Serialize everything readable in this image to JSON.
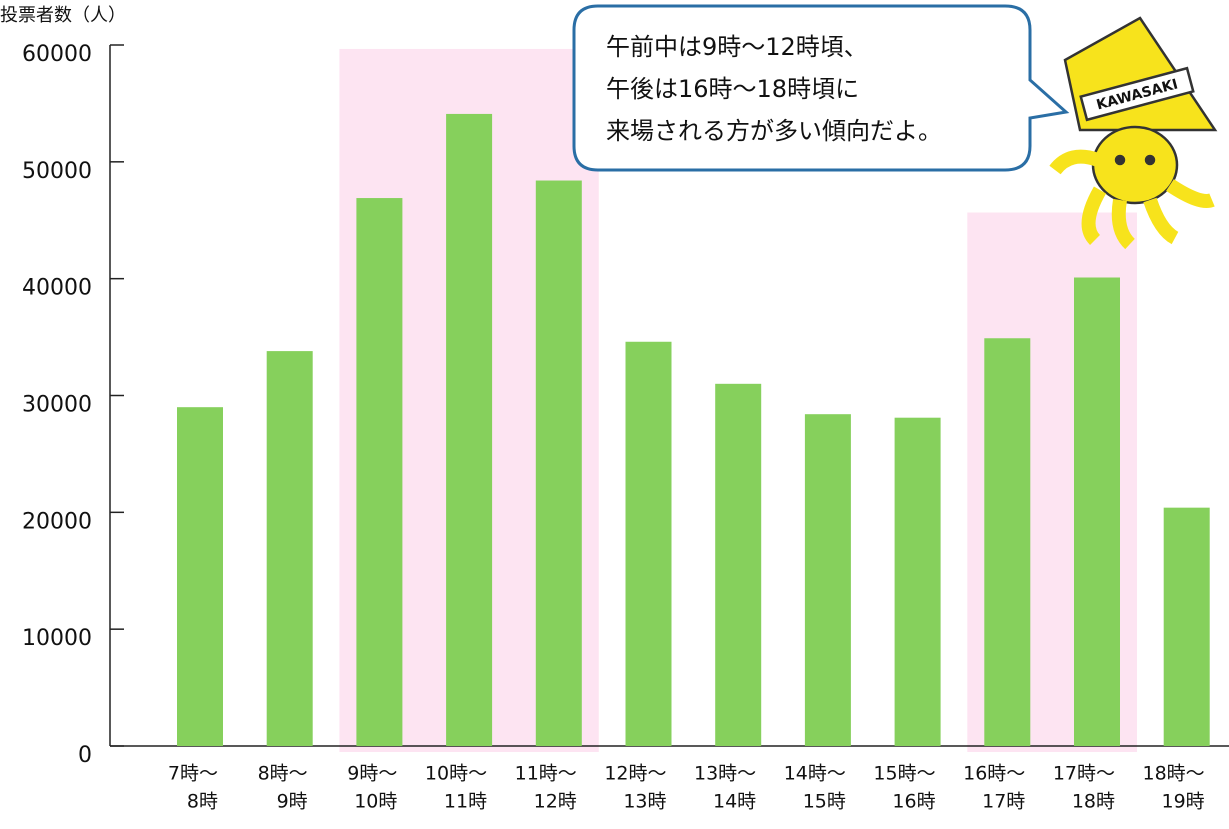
{
  "chart_data": {
    "type": "bar",
    "y_axis_label": "投票者数（人）",
    "categories": [
      [
        "7時～",
        "8時"
      ],
      [
        "8時～",
        "9時"
      ],
      [
        "9時～",
        "10時"
      ],
      [
        "10時～",
        "11時"
      ],
      [
        "11時～",
        "12時"
      ],
      [
        "12時～",
        "13時"
      ],
      [
        "13時～",
        "14時"
      ],
      [
        "14時～",
        "15時"
      ],
      [
        "15時～",
        "16時"
      ],
      [
        "16時～",
        "17時"
      ],
      [
        "17時～",
        "18時"
      ],
      [
        "18時～",
        "19時"
      ]
    ],
    "values": [
      29000,
      33800,
      46900,
      54100,
      48400,
      34600,
      31000,
      28400,
      28100,
      34900,
      40100,
      20400
    ],
    "color": "#86d05c",
    "ylim": [
      0,
      60000
    ],
    "yticks": [
      0,
      10000,
      20000,
      30000,
      40000,
      50000,
      60000
    ],
    "grid": false,
    "highlight": {
      "color": "#fde4f2",
      "ranges": [
        [
          2,
          4
        ],
        [
          9,
          10
        ]
      ]
    },
    "annotation": {
      "lines": [
        "午前中は9時～12時頃、",
        "午後は16時～18時頃に",
        "来場される方が多い傾向だよ。"
      ]
    },
    "mascot_label": "KAWASAKI"
  }
}
